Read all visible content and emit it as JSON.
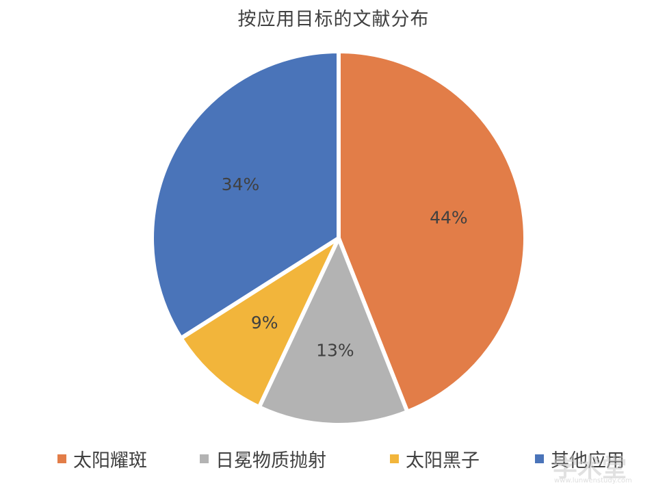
{
  "chart_data": {
    "type": "pie",
    "title": "按应用目标的文献分布",
    "categories": [
      "太阳耀斑",
      "日冕物质抛射",
      "太阳黑子",
      "其他应用"
    ],
    "values": [
      44,
      13,
      9,
      34
    ],
    "data_labels": [
      "44%",
      "13%",
      "9%",
      "34%"
    ],
    "colors": [
      "#E27D48",
      "#B3B3B3",
      "#F2B53B",
      "#4A74B9"
    ],
    "start_angle_deg": 0,
    "direction": "clockwise",
    "legend_position": "bottom"
  },
  "watermark": {
    "text": "学术堂",
    "subtext": "www.lunwenstudy.com"
  }
}
